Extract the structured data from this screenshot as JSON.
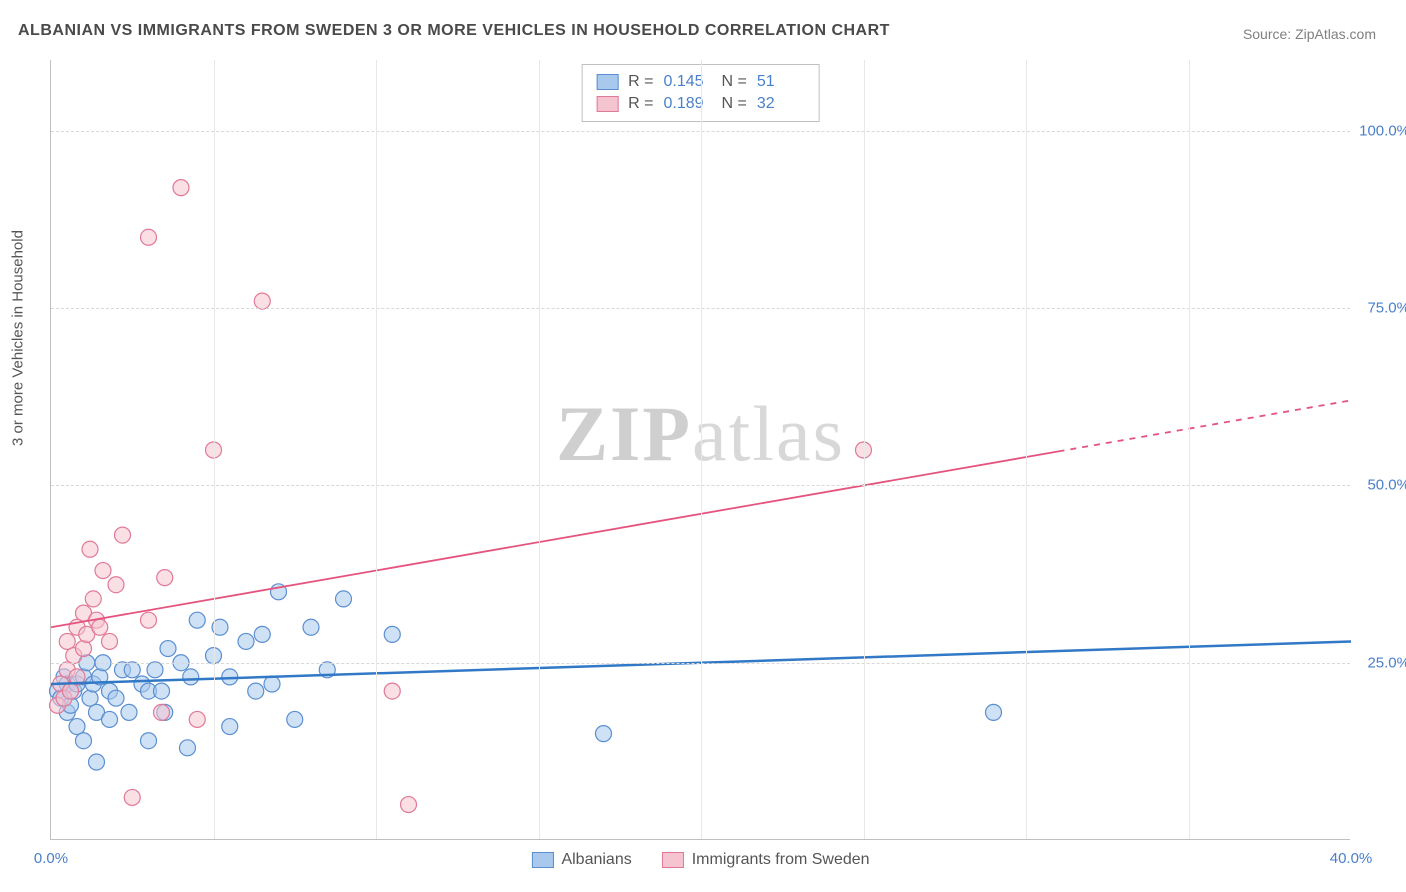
{
  "title": "ALBANIAN VS IMMIGRANTS FROM SWEDEN 3 OR MORE VEHICLES IN HOUSEHOLD CORRELATION CHART",
  "source": "Source: ZipAtlas.com",
  "ylabel": "3 or more Vehicles in Household",
  "watermark_a": "ZIP",
  "watermark_b": "atlas",
  "chart": {
    "type": "scatter",
    "xlim": [
      0,
      40
    ],
    "ylim": [
      0,
      110
    ],
    "yticks": [
      25,
      50,
      75,
      100
    ],
    "ytick_labels": [
      "25.0%",
      "50.0%",
      "75.0%",
      "100.0%"
    ],
    "xticks": [
      0,
      40
    ],
    "xtick_labels": [
      "0.0%",
      "40.0%"
    ],
    "x_minor_ticks": [
      5,
      10,
      15,
      20,
      25,
      30,
      35
    ],
    "background_color": "#ffffff",
    "grid_color": "#d8d8d8",
    "marker_radius": 8,
    "marker_opacity": 0.55,
    "series": [
      {
        "name": "Albanians",
        "color_fill": "#a8c8ec",
        "color_stroke": "#5b8fd0",
        "line_color": "#3178c6",
        "line_width": 2.5,
        "R": "0.145",
        "N": "51",
        "trend": {
          "x1": 0,
          "y1": 22,
          "x2": 40,
          "y2": 28,
          "solid_to_x": 40
        },
        "points": [
          [
            0.2,
            21
          ],
          [
            0.3,
            20
          ],
          [
            0.4,
            23
          ],
          [
            0.5,
            18
          ],
          [
            0.5,
            22
          ],
          [
            0.6,
            19
          ],
          [
            0.7,
            21
          ],
          [
            0.8,
            22
          ],
          [
            0.8,
            16
          ],
          [
            1.0,
            14
          ],
          [
            1.0,
            23
          ],
          [
            1.1,
            25
          ],
          [
            1.2,
            20
          ],
          [
            1.3,
            22
          ],
          [
            1.4,
            11
          ],
          [
            1.4,
            18
          ],
          [
            1.5,
            23
          ],
          [
            1.6,
            25
          ],
          [
            1.8,
            17
          ],
          [
            1.8,
            21
          ],
          [
            2.0,
            20
          ],
          [
            2.2,
            24
          ],
          [
            2.4,
            18
          ],
          [
            2.5,
            24
          ],
          [
            2.8,
            22
          ],
          [
            3.0,
            14
          ],
          [
            3.0,
            21
          ],
          [
            3.2,
            24
          ],
          [
            3.4,
            21
          ],
          [
            3.5,
            18
          ],
          [
            3.6,
            27
          ],
          [
            4.0,
            25
          ],
          [
            4.2,
            13
          ],
          [
            4.3,
            23
          ],
          [
            4.5,
            31
          ],
          [
            5.0,
            26
          ],
          [
            5.2,
            30
          ],
          [
            5.5,
            23
          ],
          [
            5.5,
            16
          ],
          [
            6.0,
            28
          ],
          [
            6.3,
            21
          ],
          [
            6.5,
            29
          ],
          [
            6.8,
            22
          ],
          [
            7.0,
            35
          ],
          [
            7.5,
            17
          ],
          [
            8.0,
            30
          ],
          [
            8.5,
            24
          ],
          [
            9.0,
            34
          ],
          [
            10.5,
            29
          ],
          [
            17.0,
            15
          ],
          [
            29.0,
            18
          ]
        ]
      },
      {
        "name": "Immigrants from Sweden",
        "color_fill": "#f5c4d0",
        "color_stroke": "#e07998",
        "line_color": "#e5547e",
        "line_width": 1.8,
        "R": "0.189",
        "N": "32",
        "trend": {
          "x1": 0,
          "y1": 30,
          "x2": 40,
          "y2": 62,
          "solid_to_x": 31
        },
        "points": [
          [
            0.2,
            19
          ],
          [
            0.3,
            22
          ],
          [
            0.4,
            20
          ],
          [
            0.5,
            24
          ],
          [
            0.5,
            28
          ],
          [
            0.6,
            21
          ],
          [
            0.7,
            26
          ],
          [
            0.8,
            30
          ],
          [
            0.8,
            23
          ],
          [
            1.0,
            32
          ],
          [
            1.0,
            27
          ],
          [
            1.1,
            29
          ],
          [
            1.2,
            41
          ],
          [
            1.3,
            34
          ],
          [
            1.4,
            31
          ],
          [
            1.5,
            30
          ],
          [
            1.6,
            38
          ],
          [
            1.8,
            28
          ],
          [
            2.0,
            36
          ],
          [
            2.2,
            43
          ],
          [
            2.5,
            6
          ],
          [
            3.0,
            85
          ],
          [
            3.0,
            31
          ],
          [
            3.4,
            18
          ],
          [
            3.5,
            37
          ],
          [
            4.0,
            92
          ],
          [
            4.5,
            17
          ],
          [
            5.0,
            55
          ],
          [
            6.5,
            76
          ],
          [
            10.5,
            21
          ],
          [
            11.0,
            5
          ],
          [
            25.0,
            55
          ]
        ]
      }
    ]
  },
  "legend_bottom": [
    {
      "label": "Albanians",
      "fill": "#a8c8ec",
      "stroke": "#5b8fd0"
    },
    {
      "label": "Immigrants from Sweden",
      "fill": "#f5c4d0",
      "stroke": "#e07998"
    }
  ]
}
